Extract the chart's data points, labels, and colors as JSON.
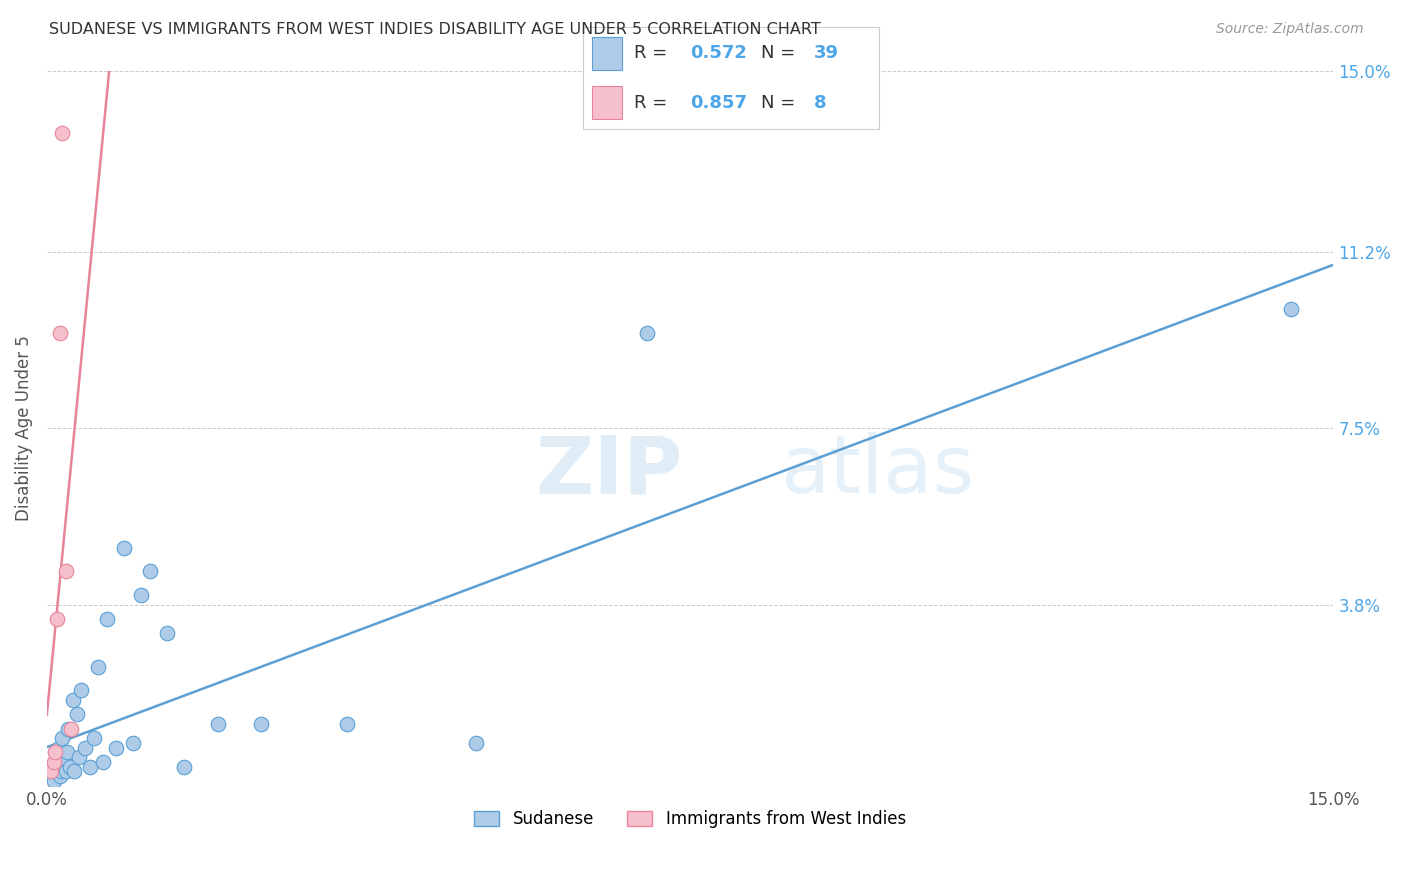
{
  "title": "SUDANESE VS IMMIGRANTS FROM WEST INDIES DISABILITY AGE UNDER 5 CORRELATION CHART",
  "source": "Source: ZipAtlas.com",
  "ylabel": "Disability Age Under 5",
  "watermark_zip": "ZIP",
  "watermark_atlas": "atlas",
  "xlim": [
    0.0,
    15.0
  ],
  "ylim": [
    0.0,
    15.0
  ],
  "series1_color": "#aecce8",
  "series1_edge": "#5b9fd4",
  "series2_color": "#f5c0cc",
  "series2_edge": "#e8849a",
  "line1_color": "#5b9fd4",
  "line2_color": "#e8849a",
  "legend_R1": "0.572",
  "legend_N1": "39",
  "legend_R2": "0.857",
  "legend_N2": "8",
  "blue_text_color": "#4da6e8",
  "black_text_color": "#333333",
  "ytick_color": "#4da6e8",
  "sudanese_x": [
    0.05,
    0.08,
    0.1,
    0.12,
    0.13,
    0.14,
    0.15,
    0.16,
    0.17,
    0.18,
    0.2,
    0.22,
    0.24,
    0.25,
    0.27,
    0.3,
    0.32,
    0.35,
    0.38,
    0.4,
    0.45,
    0.5,
    0.55,
    0.6,
    0.65,
    0.7,
    0.8,
    0.9,
    1.0,
    1.1,
    1.2,
    1.4,
    1.6,
    2.0,
    2.5,
    3.5,
    5.0,
    7.0,
    14.5
  ],
  "sudanese_y": [
    0.2,
    0.1,
    0.3,
    0.5,
    0.4,
    0.8,
    0.2,
    0.6,
    0.3,
    1.0,
    0.5,
    0.3,
    0.7,
    1.2,
    0.4,
    1.8,
    0.3,
    1.5,
    0.6,
    2.0,
    0.8,
    0.4,
    1.0,
    2.5,
    0.5,
    3.5,
    0.8,
    5.0,
    0.9,
    4.0,
    4.5,
    3.2,
    0.4,
    1.3,
    1.3,
    1.3,
    0.9,
    9.5,
    10.0
  ],
  "westindies_x": [
    0.05,
    0.08,
    0.1,
    0.12,
    0.15,
    0.18,
    0.22,
    0.28
  ],
  "westindies_y": [
    0.3,
    0.5,
    0.7,
    3.5,
    9.5,
    13.7,
    4.5,
    1.2
  ]
}
